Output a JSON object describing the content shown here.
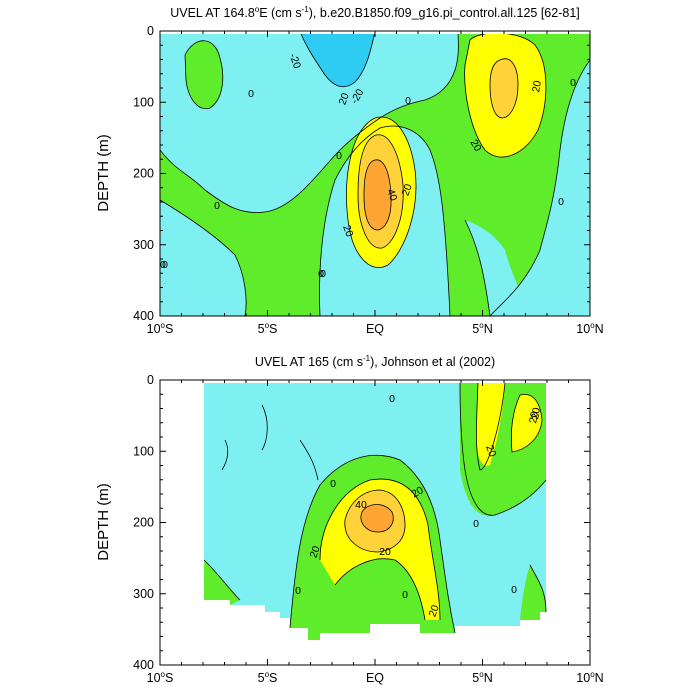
{
  "colors": {
    "lt_m20": "#2ECCF2",
    "m20_0": "#7EF0F2",
    "p0_20": "#5FEC2B",
    "p20_30": "#FFFF00",
    "p30_40": "#FFD23A",
    "gt40": "#FFA533",
    "contour_line": "#000000"
  },
  "chart_data": [
    {
      "type": "heatmap",
      "title_main": "UVEL AT 164.8",
      "title_deg": "o",
      "title_e": "E (cm s",
      "title_exp": "-1",
      "title_rest": "), b.e20.B1850.f09_g16.pi_control.all.125 [62-81]",
      "ylabel": "DEPTH (m)",
      "y_ticks": [
        "0",
        "100",
        "200",
        "300",
        "400"
      ],
      "y_values": [
        0,
        100,
        200,
        300,
        400
      ],
      "ylim": [
        0,
        400
      ],
      "x_ticks": [
        "10",
        "5",
        "EQ",
        "5",
        "10"
      ],
      "x_tick_deg": "o",
      "x_tick_hemis": [
        "S",
        "S",
        "",
        "N",
        "N"
      ],
      "x_values": [
        -10,
        -5,
        0,
        5,
        10
      ],
      "xlim": [
        -10,
        10
      ],
      "data_xlim": [
        -10,
        10
      ],
      "contour_labels": [
        "-20",
        "20",
        "-20",
        "0",
        "0",
        "20",
        "0",
        "0",
        "40",
        "20",
        "20",
        "0",
        "0",
        "20",
        "0",
        "0",
        "0",
        "0"
      ]
    },
    {
      "type": "heatmap",
      "title_main": "UVEL AT 165 (cm s",
      "title_exp": "-1",
      "title_rest": "), Johnson et al (2002)",
      "ylabel": "DEPTH (m)",
      "y_ticks": [
        "0",
        "100",
        "200",
        "300",
        "400"
      ],
      "y_values": [
        0,
        100,
        200,
        300,
        400
      ],
      "ylim": [
        0,
        400
      ],
      "x_ticks": [
        "10",
        "5",
        "EQ",
        "5",
        "10"
      ],
      "x_tick_deg": "o",
      "x_tick_hemis": [
        "S",
        "S",
        "",
        "N",
        "N"
      ],
      "x_values": [
        -10,
        -5,
        0,
        5,
        10
      ],
      "xlim": [
        -10,
        10
      ],
      "data_xlim": [
        -8,
        8
      ],
      "contour_labels": [
        "0",
        "20",
        "20",
        "20",
        "0",
        "40",
        "20",
        "20",
        "20",
        "0",
        "0",
        "0",
        "20",
        "0"
      ]
    }
  ]
}
